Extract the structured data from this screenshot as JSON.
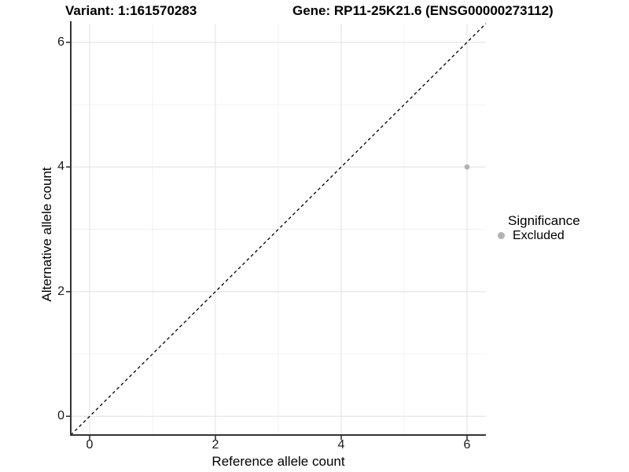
{
  "chart_data": {
    "type": "scatter",
    "title_variant": "Variant: 1:161570283",
    "title_gene": "Gene: RP11-25K21.6 (ENSG00000273112)",
    "xlabel": "Reference allele count",
    "ylabel": "Alternative allele count",
    "xlim": [
      -0.3,
      6.3
    ],
    "ylim": [
      -0.3,
      6.3
    ],
    "x_major_ticks": [
      0,
      2,
      4,
      6
    ],
    "y_major_ticks": [
      0,
      2,
      4,
      6
    ],
    "x_tick_labels": [
      "0",
      "2",
      "4",
      "6"
    ],
    "y_tick_labels": [
      "0",
      "2",
      "4",
      "6"
    ],
    "x_minor_ticks": [
      1,
      3,
      5
    ],
    "y_minor_ticks": [
      1,
      3,
      5
    ],
    "grid": true,
    "reference_line": {
      "type": "abline",
      "slope": 1,
      "intercept": 0,
      "style": "dashed",
      "color": "#000000"
    },
    "points": [
      {
        "x": 6,
        "y": 4,
        "significance": "Excluded",
        "color": "#b3b3b3"
      }
    ],
    "legend": {
      "title": "Significance",
      "position": "right",
      "items": [
        {
          "label": "Excluded",
          "color": "#b3b3b3",
          "marker": "circle"
        }
      ]
    },
    "colors": {
      "grid_major": "#e6e6e6",
      "grid_minor": "#f2f2f2",
      "axis_line": "#333333",
      "tick_mark": "#333333",
      "point": "#b3b3b3"
    }
  }
}
